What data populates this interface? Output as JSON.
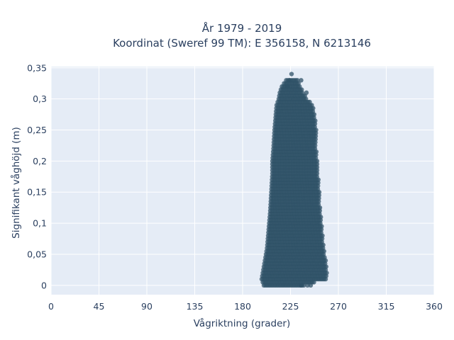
{
  "chart_data": {
    "type": "scatter",
    "title": "År 1979 - 2019",
    "subtitle": "Koordinat (Sweref 99 TM): E 356158, N 6213146",
    "xlabel": "Vågriktning (grader)",
    "ylabel": "Signifikant våghöjd (m)",
    "xlim": [
      0,
      360
    ],
    "ylim": [
      -0.015,
      0.352
    ],
    "x_ticks": [
      0,
      45,
      90,
      135,
      180,
      225,
      270,
      315,
      360
    ],
    "x_tick_labels": [
      "0",
      "45",
      "90",
      "135",
      "180",
      "225",
      "270",
      "315",
      "360"
    ],
    "y_ticks": [
      0,
      0.05,
      0.1,
      0.15,
      0.2,
      0.25,
      0.3,
      0.35
    ],
    "y_tick_labels": [
      "0",
      "0,05",
      "0,1",
      "0,15",
      "0,2",
      "0,25",
      "0,3",
      "0,35"
    ],
    "grid": true,
    "marker_color": "#2f5167",
    "plot_background": "#e5ecf6",
    "point_cloud": {
      "y_step": 0.005,
      "x_step": 1.5,
      "rows": [
        [
          0.0,
          200,
          238
        ],
        [
          0.01,
          198,
          258
        ],
        [
          0.02,
          199,
          259
        ],
        [
          0.03,
          200,
          259
        ],
        [
          0.04,
          201,
          258
        ],
        [
          0.05,
          202,
          257
        ],
        [
          0.06,
          203,
          256
        ],
        [
          0.08,
          204,
          255
        ],
        [
          0.1,
          205,
          254
        ],
        [
          0.12,
          206,
          253
        ],
        [
          0.15,
          207,
          252
        ],
        [
          0.18,
          208,
          251
        ],
        [
          0.2,
          208,
          250
        ],
        [
          0.22,
          209,
          249
        ],
        [
          0.25,
          210,
          249
        ],
        [
          0.27,
          211,
          248
        ],
        [
          0.29,
          212,
          246
        ],
        [
          0.3,
          214,
          240
        ],
        [
          0.31,
          215,
          237
        ],
        [
          0.32,
          217,
          234
        ],
        [
          0.33,
          221,
          232
        ]
      ],
      "outliers": [
        [
          226,
          0.34
        ],
        [
          224,
          0.33
        ],
        [
          235,
          0.33
        ],
        [
          222,
          0.32
        ],
        [
          240,
          0.31
        ],
        [
          241,
          0.0
        ],
        [
          244,
          0.0
        ],
        [
          235,
          0.0
        ]
      ]
    }
  }
}
